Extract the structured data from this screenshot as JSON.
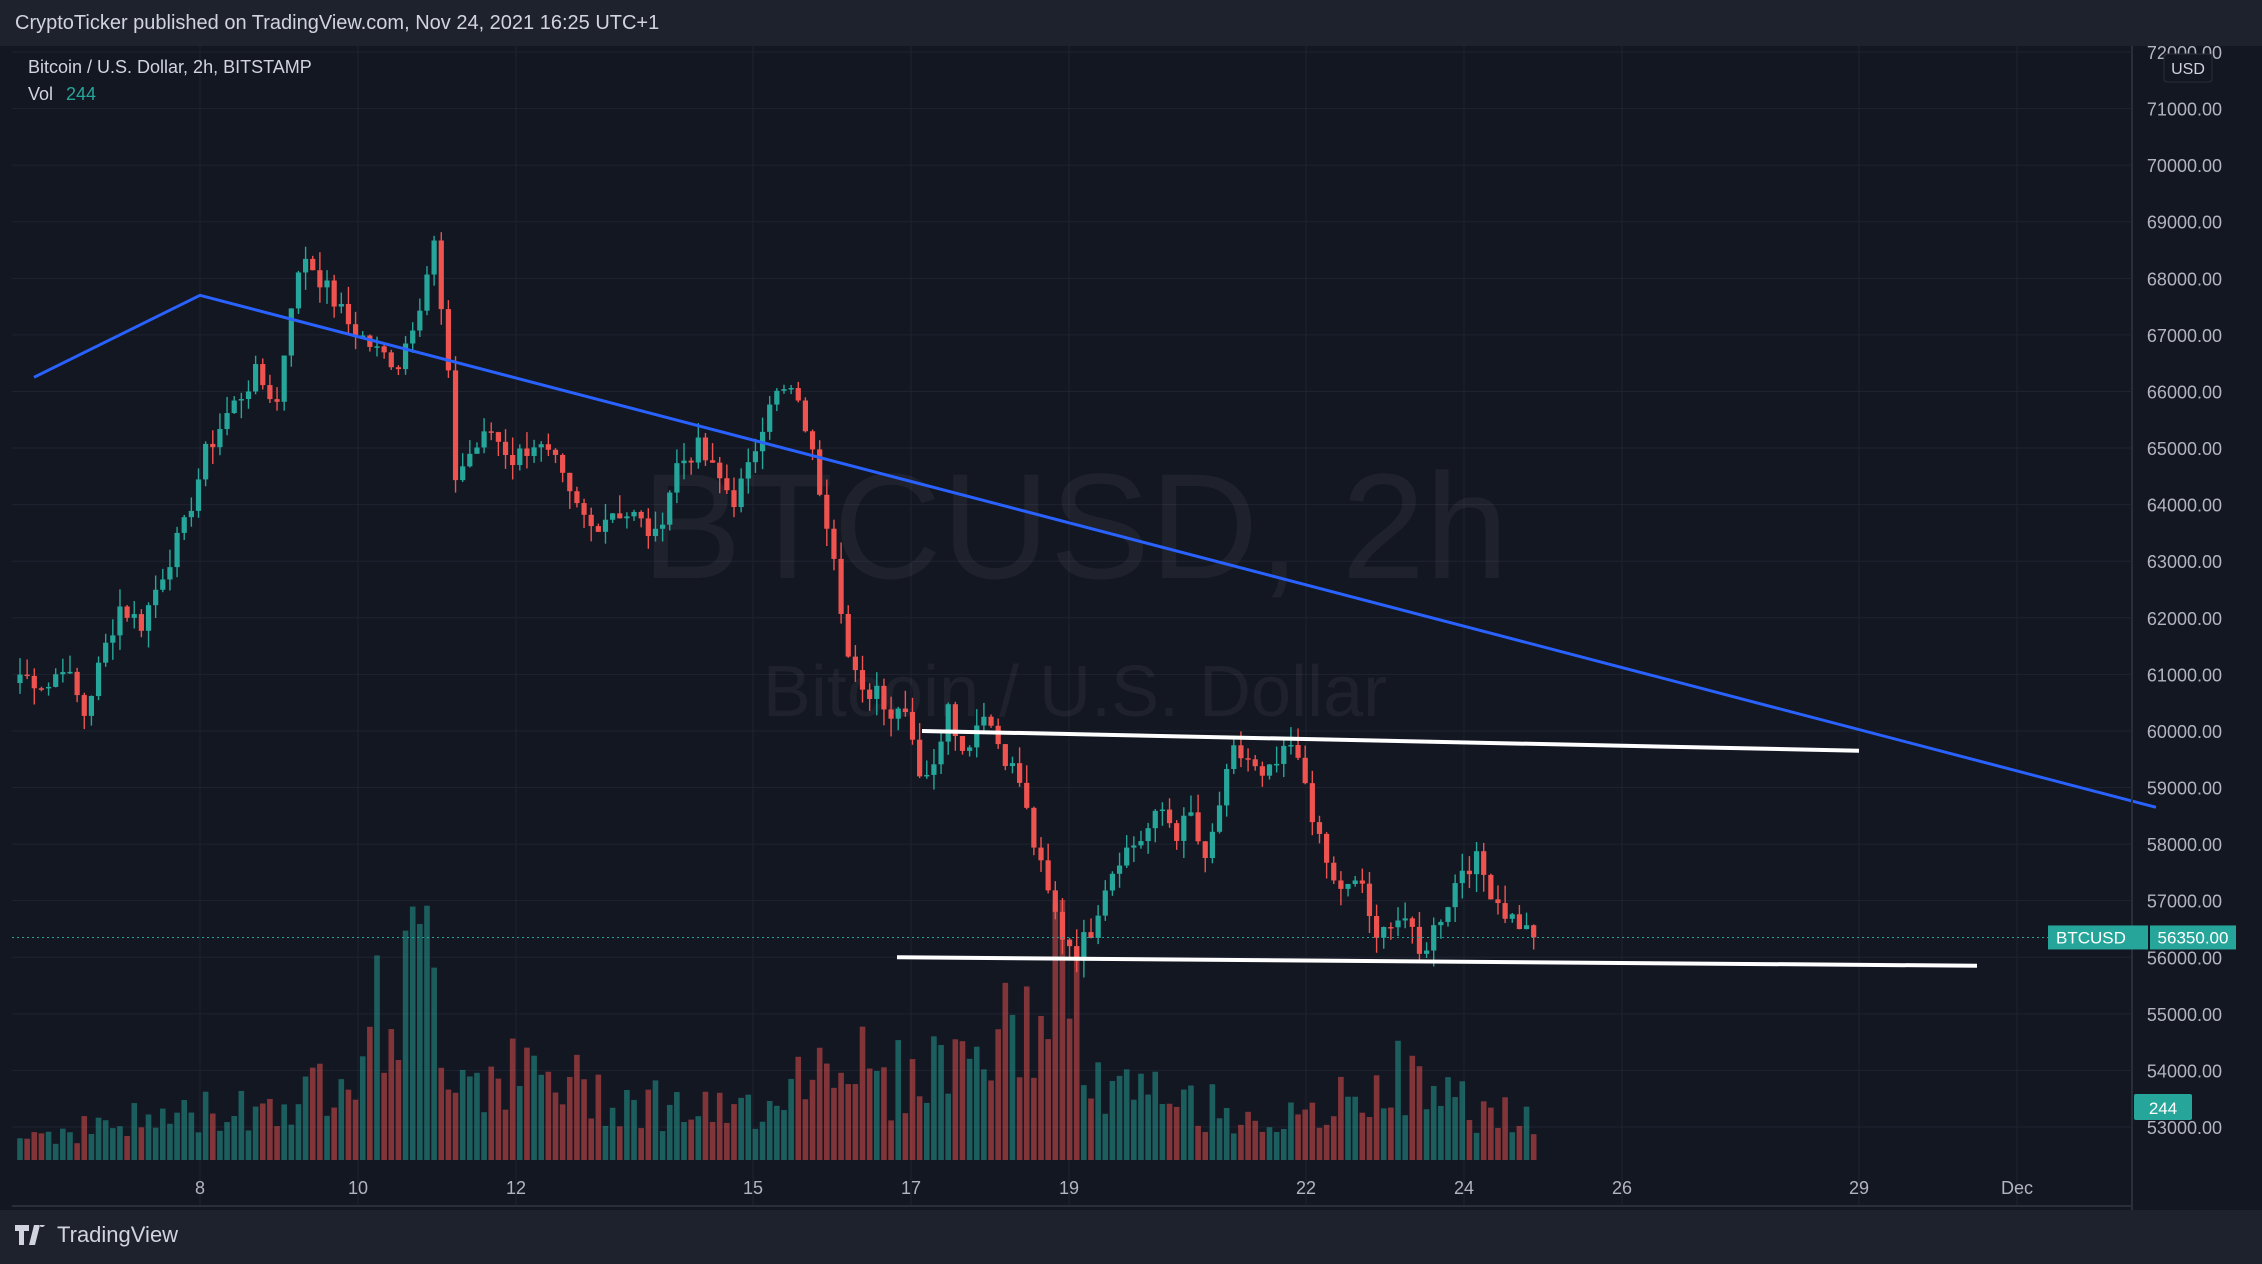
{
  "header": {
    "published": "CryptoTicker published on TradingView.com, Nov 24, 2021 16:25 UTC+1"
  },
  "legend": {
    "symbol": "Bitcoin / U.S. Dollar, 2h, BITSTAMP",
    "vol_label": "Vol",
    "vol_value": "244"
  },
  "watermark": {
    "line1": "BTCUSD, 2h",
    "line2": "Bitcoin / U.S. Dollar"
  },
  "axis": {
    "currency": "USD",
    "price_ticks": [
      "72000.00",
      "71000.00",
      "70000.00",
      "69000.00",
      "68000.00",
      "67000.00",
      "66000.00",
      "65000.00",
      "64000.00",
      "63000.00",
      "62000.00",
      "61000.00",
      "60000.00",
      "59000.00",
      "58000.00",
      "57000.00",
      "56000.00",
      "55000.00",
      "54000.00",
      "53000.00"
    ],
    "date_ticks": [
      "8",
      "10",
      "12",
      "15",
      "17",
      "19",
      "22",
      "24",
      "26",
      "29",
      "Dec"
    ]
  },
  "price_label": {
    "symbol": "BTCUSD",
    "value": "56350.00",
    "vol_value": "244"
  },
  "colors": {
    "up": "#26a69a",
    "down": "#ef5350",
    "trendline": "#2962ff",
    "support": "#ffffff",
    "background": "#131722"
  },
  "brand": {
    "name": "TradingView"
  },
  "chart_data": {
    "type": "candlestick",
    "timeframe": "2h",
    "ylim": [
      52500,
      72000
    ],
    "anchors": [
      [
        0,
        61000
      ],
      [
        4,
        60800
      ],
      [
        6,
        61200
      ],
      [
        9,
        60300
      ],
      [
        12,
        61500
      ],
      [
        14,
        62200
      ],
      [
        17,
        61900
      ],
      [
        20,
        62800
      ],
      [
        23,
        63600
      ],
      [
        26,
        64900
      ],
      [
        29,
        65600
      ],
      [
        33,
        66300
      ],
      [
        36,
        65800
      ],
      [
        38,
        67600
      ],
      [
        40,
        68400
      ],
      [
        43,
        67800
      ],
      [
        46,
        67200
      ],
      [
        50,
        66700
      ],
      [
        53,
        66500
      ],
      [
        56,
        67600
      ],
      [
        58,
        68600
      ],
      [
        60,
        66200
      ],
      [
        61,
        64500
      ],
      [
        63,
        64900
      ],
      [
        66,
        65300
      ],
      [
        69,
        64800
      ],
      [
        72,
        65100
      ],
      [
        75,
        64700
      ],
      [
        77,
        64100
      ],
      [
        80,
        63600
      ],
      [
        83,
        63900
      ],
      [
        86,
        63800
      ],
      [
        89,
        63400
      ],
      [
        92,
        64700
      ],
      [
        95,
        65000
      ],
      [
        97,
        64600
      ],
      [
        100,
        64100
      ],
      [
        102,
        64600
      ],
      [
        105,
        65900
      ],
      [
        108,
        66000
      ],
      [
        110,
        65400
      ],
      [
        112,
        64300
      ],
      [
        114,
        63200
      ],
      [
        116,
        61300
      ],
      [
        118,
        60600
      ],
      [
        120,
        60800
      ],
      [
        122,
        60300
      ],
      [
        124,
        60500
      ],
      [
        126,
        59300
      ],
      [
        128,
        59300
      ],
      [
        130,
        60600
      ],
      [
        132,
        59600
      ],
      [
        135,
        60400
      ],
      [
        137,
        59800
      ],
      [
        140,
        59100
      ],
      [
        142,
        58000
      ],
      [
        144,
        57100
      ],
      [
        146,
        56400
      ],
      [
        148,
        56100
      ],
      [
        150,
        56500
      ],
      [
        152,
        57300
      ],
      [
        154,
        57800
      ],
      [
        157,
        58100
      ],
      [
        160,
        58600
      ],
      [
        162,
        58200
      ],
      [
        164,
        58500
      ],
      [
        166,
        57600
      ],
      [
        168,
        58700
      ],
      [
        170,
        59600
      ],
      [
        172,
        59500
      ],
      [
        174,
        59100
      ],
      [
        176,
        59400
      ],
      [
        178,
        59700
      ],
      [
        180,
        59100
      ],
      [
        182,
        58000
      ],
      [
        184,
        57300
      ],
      [
        186,
        57200
      ],
      [
        188,
        57300
      ],
      [
        190,
        56200
      ],
      [
        192,
        56700
      ],
      [
        194,
        56700
      ],
      [
        196,
        56000
      ],
      [
        198,
        56500
      ],
      [
        200,
        57000
      ],
      [
        202,
        57600
      ],
      [
        204,
        57700
      ],
      [
        206,
        57200
      ],
      [
        208,
        56800
      ],
      [
        210,
        56600
      ],
      [
        212,
        56350
      ]
    ],
    "volume_anchors": [
      [
        0,
        20
      ],
      [
        40,
        50
      ],
      [
        58,
        170
      ],
      [
        60,
        80
      ],
      [
        100,
        35
      ],
      [
        116,
        100
      ],
      [
        120,
        60
      ],
      [
        142,
        110
      ],
      [
        146,
        180
      ],
      [
        150,
        60
      ],
      [
        180,
        30
      ],
      [
        192,
        70
      ],
      [
        200,
        50
      ],
      [
        212,
        30
      ]
    ],
    "trendline": {
      "from": [
        "Nov 6",
        66250
      ],
      "via": [
        "Nov 8",
        67700
      ],
      "to": [
        "Dec 2",
        58650
      ]
    },
    "resistance": {
      "from": [
        "Nov 16",
        60000
      ],
      "to": [
        "Nov 29",
        59650
      ]
    },
    "support": {
      "from": [
        "Nov 17",
        56000
      ],
      "to": [
        "Dec 1",
        55850
      ]
    },
    "last_price": 56350,
    "last_volume": 244
  }
}
